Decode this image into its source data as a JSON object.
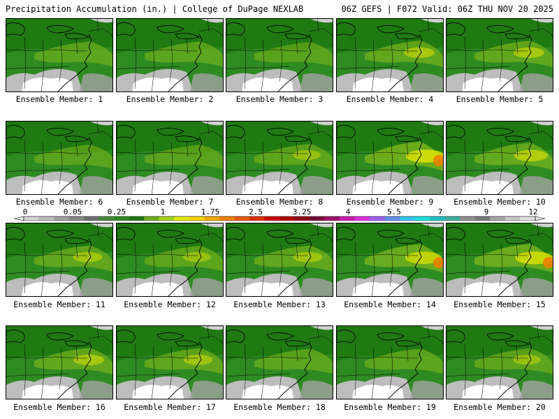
{
  "header": {
    "title": "Precipitation Accumulation (in.) | College of DuPage NEXLAB",
    "run_info": "06Z GEFS | F072 Valid: 06Z THU NOV 20 2025"
  },
  "colorbar": {
    "tick_labels": [
      "0",
      "0.05",
      "0.25",
      "1",
      "1.75",
      "2.5",
      "3.25",
      "4",
      "5.5",
      "7",
      "9",
      "12"
    ],
    "colors": [
      "#d6d6d6",
      "#bdbdbd",
      "#a3a3a3",
      "#8a8a8a",
      "#6f6f6f",
      "#4a8a3a",
      "#2e8b22",
      "#1f7a12",
      "#6fae1e",
      "#a8d21e",
      "#e8e800",
      "#f5d400",
      "#f5a800",
      "#f08000",
      "#e85a00",
      "#e03000",
      "#d00000",
      "#b00000",
      "#900018",
      "#7a0a3a",
      "#a0106a",
      "#c81cb0",
      "#e030e0",
      "#a060f0",
      "#6090f0",
      "#30c8f0",
      "#20e0e0",
      "#20c0c0",
      "#40b0a0",
      "#909090",
      "#7a7a7a",
      "#a8a8a8",
      "#c8c8c8",
      "#e0e0e0"
    ]
  },
  "members": [
    {
      "label": "Ensemble Member: 1",
      "intensity": 0.45
    },
    {
      "label": "Ensemble Member: 2",
      "intensity": 0.45
    },
    {
      "label": "Ensemble Member: 3",
      "intensity": 0.35
    },
    {
      "label": "Ensemble Member: 4",
      "intensity": 0.6
    },
    {
      "label": "Ensemble Member: 5",
      "intensity": 0.6
    },
    {
      "label": "Ensemble Member: 6",
      "intensity": 0.35
    },
    {
      "label": "Ensemble Member: 7",
      "intensity": 0.35
    },
    {
      "label": "Ensemble Member: 8",
      "intensity": 0.5
    },
    {
      "label": "Ensemble Member: 9",
      "intensity": 0.9
    },
    {
      "label": "Ensemble Member: 10",
      "intensity": 0.7
    },
    {
      "label": "Ensemble Member: 11",
      "intensity": 0.55
    },
    {
      "label": "Ensemble Member: 12",
      "intensity": 0.5
    },
    {
      "label": "Ensemble Member: 13",
      "intensity": 0.55
    },
    {
      "label": "Ensemble Member: 14",
      "intensity": 0.8
    },
    {
      "label": "Ensemble Member: 15",
      "intensity": 0.85
    },
    {
      "label": "Ensemble Member: 16",
      "intensity": 0.6
    },
    {
      "label": "Ensemble Member: 17",
      "intensity": 0.55
    },
    {
      "label": "Ensemble Member: 18",
      "intensity": 0.45
    },
    {
      "label": "Ensemble Member: 19",
      "intensity": 0.45
    },
    {
      "label": "Ensemble Member: 20",
      "intensity": 0.5
    }
  ]
}
